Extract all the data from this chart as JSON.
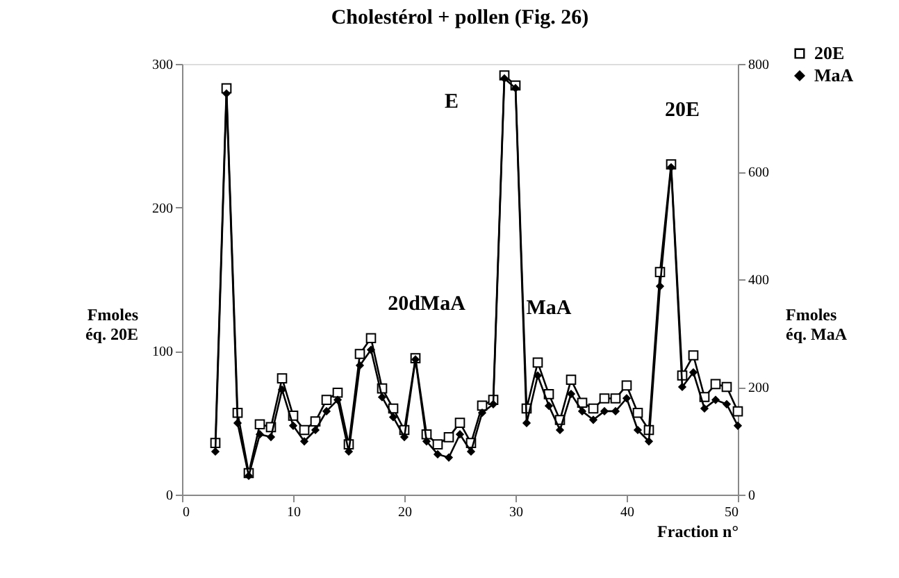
{
  "chart_data": {
    "type": "line",
    "title": "Cholestérol + pollen (Fig. 26)",
    "xlabel": "Fraction n°",
    "ylabel": "Fmoles éq. 20E",
    "y2label": "Fmoles éq. MaA",
    "x": [
      3,
      4,
      5,
      6,
      7,
      8,
      9,
      10,
      11,
      12,
      13,
      14,
      15,
      16,
      17,
      18,
      19,
      20,
      21,
      22,
      23,
      24,
      25,
      26,
      27,
      28,
      29,
      30,
      31,
      32,
      33,
      34,
      35,
      36,
      37,
      38,
      39,
      40,
      41,
      42,
      43,
      44,
      45,
      46,
      47,
      48,
      49,
      50
    ],
    "series": [
      {
        "name": "20E",
        "color": "#000000",
        "marker": "square",
        "values": [
          36,
          283,
          57,
          15,
          49,
          47,
          81,
          55,
          45,
          51,
          66,
          71,
          35,
          98,
          109,
          74,
          60,
          45,
          95,
          42,
          35,
          40,
          50,
          36,
          62,
          66,
          292,
          285,
          60,
          92,
          70,
          52,
          80,
          64,
          60,
          67,
          67,
          76,
          57,
          45,
          155,
          230,
          83,
          97,
          68,
          77,
          75,
          58
        ]
      },
      {
        "name": "MaA",
        "color": "#000000",
        "marker": "diamond",
        "axis": "y2",
        "values": [
          80,
          745,
          133,
          35,
          112,
          107,
          195,
          128,
          99,
          120,
          155,
          176,
          80,
          240,
          269,
          181,
          144,
          107,
          251,
          99,
          75,
          69,
          112,
          80,
          152,
          168,
          773,
          755,
          133,
          221,
          165,
          120,
          187,
          155,
          139,
          155,
          155,
          179,
          120,
          99,
          387,
          608,
          200,
          227,
          160,
          176,
          168,
          128
        ]
      }
    ],
    "xlim": [
      0,
      50
    ],
    "xticks": [
      0,
      10,
      20,
      30,
      40,
      50
    ],
    "ylim": [
      0,
      300
    ],
    "yticks": [
      0,
      100,
      200,
      300
    ],
    "y2lim": [
      0,
      800
    ],
    "y2ticks": [
      0,
      200,
      400,
      600,
      800
    ],
    "annotations": [
      {
        "text": "E",
        "x": 29,
        "y": 292
      },
      {
        "text": "20dMaA",
        "x": 21,
        "y": 95
      },
      {
        "text": "MaA",
        "x": 32,
        "y": 92
      },
      {
        "text": "20E",
        "x": 44,
        "y": 230
      }
    ],
    "legend": "top right",
    "grid": false,
    "line_style": "solid"
  }
}
